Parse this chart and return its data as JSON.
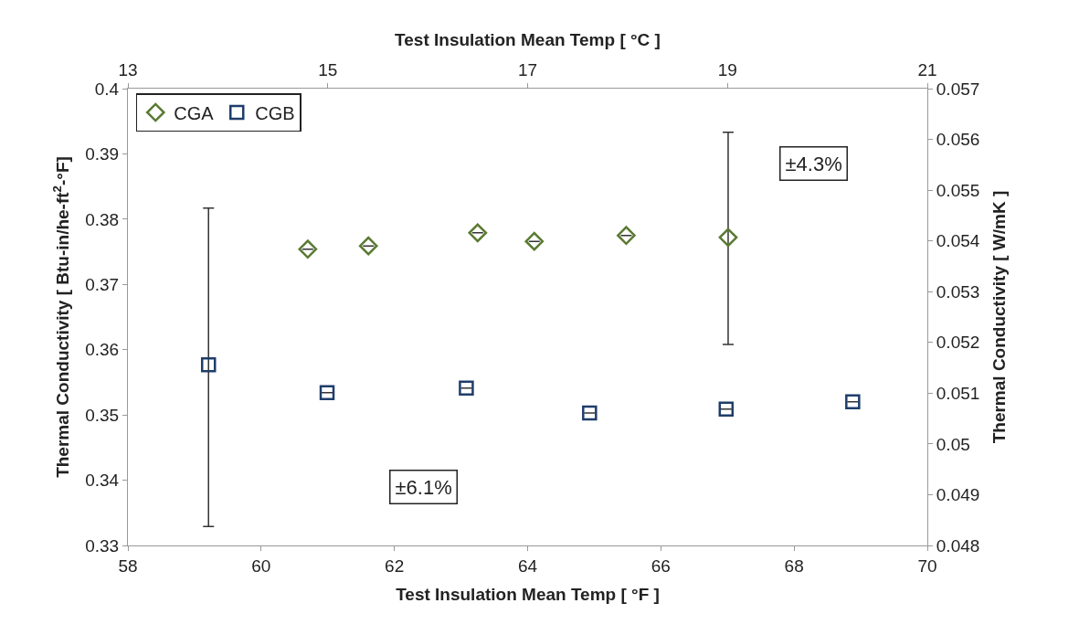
{
  "chart_data": {
    "type": "scatter",
    "xlabel": "Test Insulation Mean Temp [ °F ]",
    "x2label": "Test Insulation Mean Temp [ °C ]",
    "ylabel": "Thermal Conductivity [ Btu-in/he-ft$^{2}$-°F]",
    "y2label": "Thermal Conductivity [ W/mK ]",
    "xlim": [
      58,
      70
    ],
    "xticks": [
      58,
      60,
      62,
      64,
      66,
      68,
      70
    ],
    "x2lim": [
      13,
      21
    ],
    "x2ticks": [
      13,
      15,
      17,
      19,
      21
    ],
    "ylim": [
      0.33,
      0.4
    ],
    "yticks": [
      0.33,
      0.34,
      0.35,
      0.36,
      0.37,
      0.38,
      0.39,
      0.4
    ],
    "y2lim": [
      0.048,
      0.057
    ],
    "y2ticks": [
      0.048,
      0.049,
      0.05,
      0.051,
      0.052,
      0.053,
      0.054,
      0.055,
      0.056,
      0.057
    ],
    "grid": false,
    "legend": "top left",
    "annotations": [
      "±6.1%",
      "±4.3%"
    ],
    "series": [
      {
        "name": "CGA",
        "color": "#5a7a32",
        "marker": "diamond",
        "x": [
          60.7,
          61.61,
          63.25,
          64.1,
          65.48,
          67.01
        ],
        "values": [
          0.3754,
          0.3759,
          0.3779,
          0.3766,
          0.3775,
          0.3772
        ],
        "errors": [
          null,
          null,
          null,
          null,
          null,
          [
            0.3608,
            0.3933
          ]
        ]
      },
      {
        "name": "CGB",
        "color": "#1f3d6b",
        "marker": "square",
        "x": [
          59.21,
          60.99,
          63.08,
          64.93,
          66.98,
          68.88
        ],
        "values": [
          0.3577,
          0.3534,
          0.3541,
          0.3503,
          0.3509,
          0.352
        ],
        "errors": [
          [
            0.3329,
            0.3817
          ],
          null,
          null,
          null,
          null,
          null
        ]
      }
    ]
  }
}
